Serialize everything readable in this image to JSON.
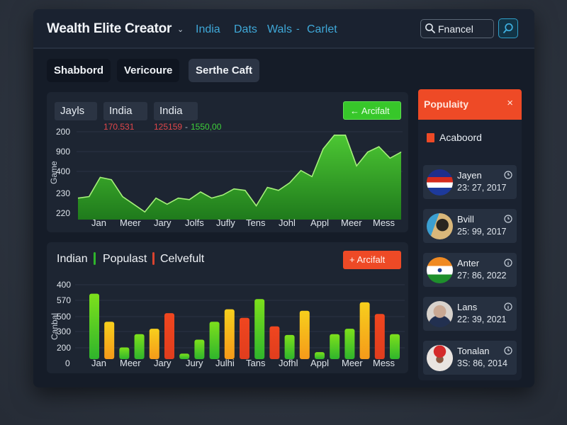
{
  "header": {
    "app_title": "Wealth Elite Creator",
    "nav": [
      "India",
      "Dats",
      "Wals",
      "Carlet"
    ],
    "nav_separator": "-",
    "search": {
      "value": "Fnancel",
      "icon": "search-icon"
    },
    "search_button_icon": "search-icon"
  },
  "tabs": [
    {
      "label": "Shabbord",
      "active": false
    },
    {
      "label": "Vericoure",
      "active": false
    },
    {
      "label": "Serthe Caft",
      "active": true
    }
  ],
  "area_panel": {
    "chips": [
      "Jayls",
      "India",
      "India"
    ],
    "stats": {
      "first": "170.531",
      "second": "125159",
      "separator": "-",
      "third": "1550,00"
    },
    "button_label": "← Arcifalt",
    "y_ticks": [
      "200",
      "900",
      "400",
      "230",
      "220"
    ],
    "y_label": "Game",
    "x_ticks": [
      "Jan",
      "Meer",
      "Jary",
      "Jolfs",
      "Jufly",
      "Tens",
      "Johl",
      "Appl",
      "Meer",
      "Mess"
    ]
  },
  "bar_panel": {
    "legend": [
      "Indian",
      "Populast",
      "Celvefult"
    ],
    "button_label": "+ Arcifalt",
    "y_ticks": [
      "400",
      "570",
      "500",
      "300",
      "200",
      "0"
    ],
    "y_label": "Canbal",
    "x_ticks": [
      "Jan",
      "Meer",
      "Jary",
      "Jury",
      "Julhi",
      "Tans",
      "Jofhl",
      "Appl",
      "Meer",
      "Mess"
    ]
  },
  "sidebar": {
    "title": "Populaity",
    "close_label": "×",
    "filter_label": "Acaboord",
    "users": [
      {
        "name": "Jayen",
        "date": "23: 27, 2017",
        "avatar": "flag-red-white-blue"
      },
      {
        "name": "Bvill",
        "date": "25: 99, 2017",
        "avatar": "photo-person"
      },
      {
        "name": "Anter",
        "date": "27: 86, 2022",
        "avatar": "flag-india"
      },
      {
        "name": "Lans",
        "date": "22: 39, 2021",
        "avatar": "photo-elder"
      },
      {
        "name": "Tonalan",
        "date": "3S: 86, 2014",
        "avatar": "photo-red-cap"
      }
    ]
  },
  "colors": {
    "accent_blue": "#3fa8d8",
    "green": "#37c72a",
    "orange_red": "#ee4a26",
    "amber": "#f5b31b",
    "panel_bg": "#1d2532"
  },
  "chart_data": [
    {
      "type": "area",
      "title": "",
      "ylabel": "Game",
      "xlabel": "",
      "y_ticks": [
        "200",
        "900",
        "400",
        "230",
        "220"
      ],
      "categories": [
        "Jan",
        "Meer",
        "Jary",
        "Jolfs",
        "Jufly",
        "Tens",
        "Johl",
        "Appl",
        "Meer",
        "Mess"
      ],
      "x_points": 30,
      "values": [
        28,
        30,
        55,
        52,
        30,
        20,
        10,
        28,
        20,
        28,
        26,
        36,
        28,
        32,
        40,
        38,
        18,
        42,
        38,
        48,
        64,
        56,
        92,
        110,
        110,
        70,
        88,
        95,
        80,
        88
      ],
      "value_scale": "relative 0-120 (plot height)",
      "grid": true,
      "color": "#37c72a"
    },
    {
      "type": "bar",
      "title": "",
      "ylabel": "Canbal",
      "xlabel": "",
      "y_ticks": [
        "400",
        "570",
        "500",
        "300",
        "200",
        "0"
      ],
      "categories": [
        "Jan",
        "Meer",
        "Jary",
        "Jury",
        "Julhi",
        "Tans",
        "Jofhl",
        "Appl",
        "Meer",
        "Mess"
      ],
      "legend": [
        "Indian",
        "Populast",
        "Celvefult"
      ],
      "bars": [
        {
          "v": 84,
          "c": "green"
        },
        {
          "v": 48,
          "c": "amber"
        },
        {
          "v": 15,
          "c": "green"
        },
        {
          "v": 32,
          "c": "green"
        },
        {
          "v": 39,
          "c": "amber"
        },
        {
          "v": 59,
          "c": "red"
        },
        {
          "v": 7,
          "c": "green"
        },
        {
          "v": 25,
          "c": "green"
        },
        {
          "v": 48,
          "c": "green"
        },
        {
          "v": 64,
          "c": "amber"
        },
        {
          "v": 53,
          "c": "red"
        },
        {
          "v": 77,
          "c": "green"
        },
        {
          "v": 42,
          "c": "red"
        },
        {
          "v": 31,
          "c": "green"
        },
        {
          "v": 62,
          "c": "amber"
        },
        {
          "v": 9,
          "c": "green"
        },
        {
          "v": 32,
          "c": "green"
        },
        {
          "v": 39,
          "c": "green"
        },
        {
          "v": 73,
          "c": "amber"
        },
        {
          "v": 58,
          "c": "red"
        },
        {
          "v": 32,
          "c": "green"
        },
        {
          "v": 84,
          "c": "amber"
        }
      ],
      "value_scale": "relative 0-100 (plot height)",
      "grid": true
    }
  ]
}
